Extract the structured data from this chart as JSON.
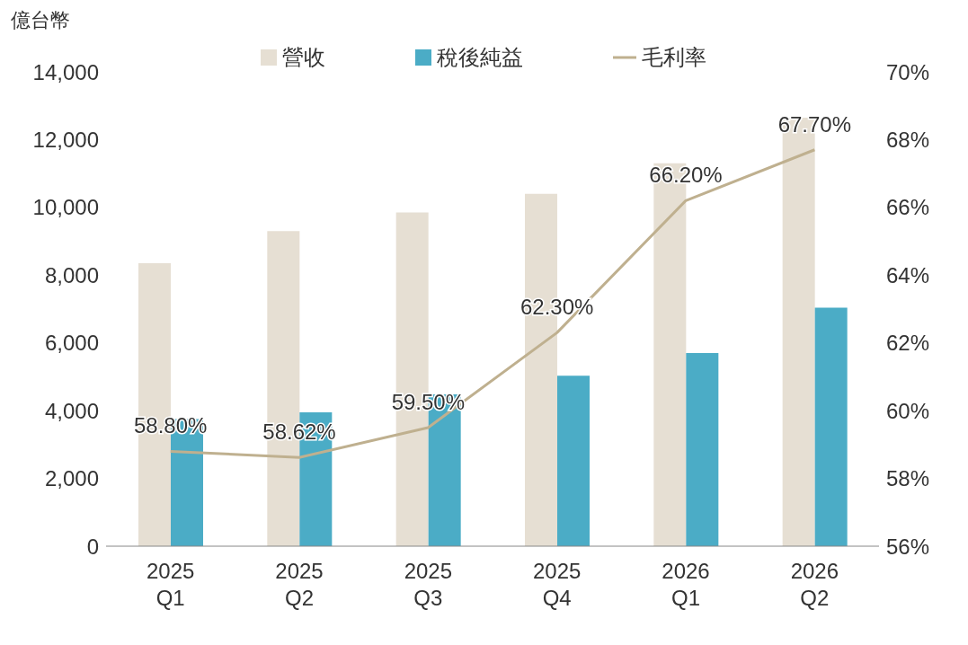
{
  "chart_data": {
    "type": "bar",
    "ylabel": "億台幣",
    "categories": [
      "2025 Q1",
      "2025 Q2",
      "2025 Q3",
      "2025 Q4",
      "2026 Q1",
      "2026 Q2"
    ],
    "series": [
      {
        "name": "營收",
        "color": "#e6dfd3",
        "values": [
          8350,
          9300,
          9850,
          10400,
          11300,
          12650
        ]
      },
      {
        "name": "稅後純益",
        "color": "#4bacc6",
        "values": [
          3750,
          3950,
          4480,
          5030,
          5700,
          7040
        ]
      },
      {
        "name": "毛利率",
        "type": "line",
        "axis": "y2",
        "color": "#bfb08f",
        "values": [
          58.8,
          58.62,
          59.5,
          62.3,
          66.2,
          67.7
        ],
        "value_labels": [
          "58.80%",
          "58.62%",
          "59.50%",
          "62.30%",
          "66.20%",
          "67.70%"
        ],
        "marker": "none"
      }
    ],
    "ylim": [
      0,
      14000
    ],
    "yticks": [
      {
        "value": 0,
        "label": "0"
      },
      {
        "value": 2000,
        "label": "2,000"
      },
      {
        "value": 4000,
        "label": "4,000"
      },
      {
        "value": 6000,
        "label": "6,000"
      },
      {
        "value": 8000,
        "label": "8,000"
      },
      {
        "value": 10000,
        "label": "10,000"
      },
      {
        "value": 12000,
        "label": "12,000"
      },
      {
        "value": 14000,
        "label": "14,000"
      }
    ],
    "y2lim": [
      56,
      70
    ],
    "y2ticks": [
      {
        "value": 56,
        "label": "56%"
      },
      {
        "value": 58,
        "label": "58%"
      },
      {
        "value": 60,
        "label": "60%"
      },
      {
        "value": 62,
        "label": "62%"
      },
      {
        "value": 64,
        "label": "64%"
      },
      {
        "value": 66,
        "label": "66%"
      },
      {
        "value": 68,
        "label": "68%"
      },
      {
        "value": 70,
        "label": "70%"
      }
    ],
    "grid": false,
    "legend": "top"
  }
}
